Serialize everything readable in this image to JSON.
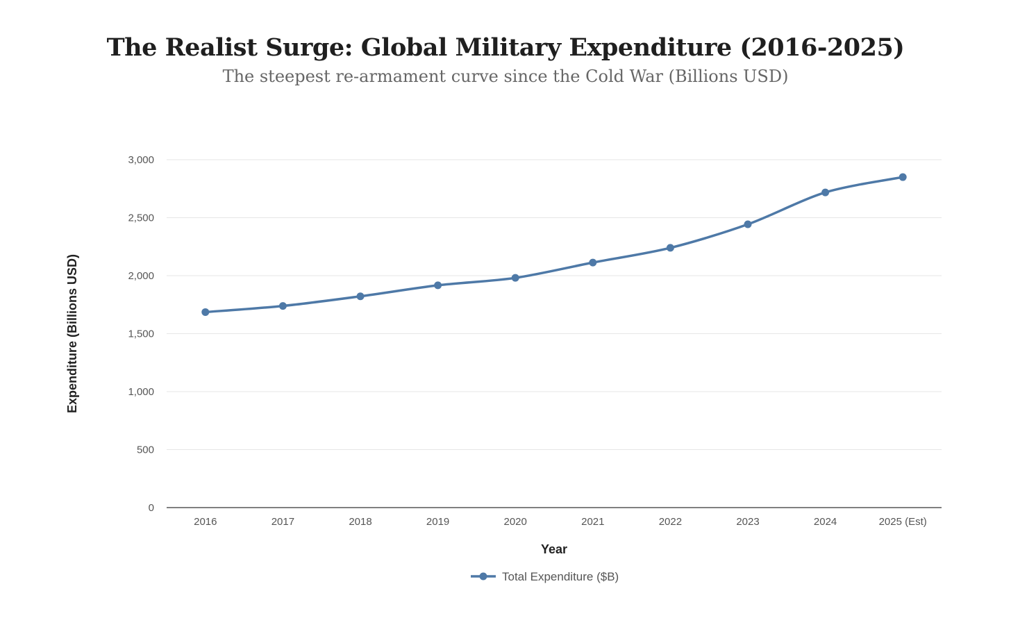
{
  "chart_data": {
    "type": "line",
    "title": "The Realist Surge: Global Military Expenditure (2016-2025)",
    "subtitle": "The steepest re-armament curve since the Cold War (Billions USD)",
    "xlabel": "Year",
    "ylabel": "Expenditure (Billions USD)",
    "categories": [
      "2016",
      "2017",
      "2018",
      "2019",
      "2020",
      "2021",
      "2022",
      "2023",
      "2024",
      "2025 (Est)"
    ],
    "series": [
      {
        "name": "Total Expenditure ($B)",
        "values": [
          1686,
          1739,
          1822,
          1917,
          1981,
          2113,
          2240,
          2443,
          2718,
          2850
        ],
        "color": "#4e79a7"
      }
    ],
    "ylim": [
      0,
      3000
    ],
    "yticks": [
      0,
      500,
      1000,
      1500,
      2000,
      2500,
      3000
    ],
    "ytick_labels": [
      "0",
      "500",
      "1,000",
      "1,500",
      "2,000",
      "2,500",
      "3,000"
    ],
    "grid": true,
    "legend_position": "bottom-center"
  }
}
